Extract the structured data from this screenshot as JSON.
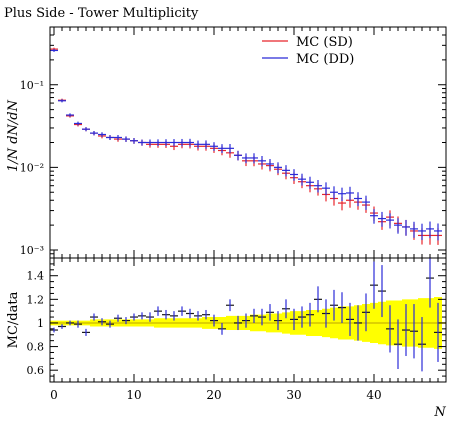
{
  "chart_data": {
    "type": "line",
    "title": "Plus Side - Tower Multiplicity",
    "xlabel": "N",
    "ylabel": "1/N dN/dN",
    "ratio_ylabel": "MC/data",
    "x": [
      0,
      1,
      2,
      3,
      4,
      5,
      6,
      7,
      8,
      9,
      10,
      11,
      12,
      13,
      14,
      15,
      16,
      17,
      18,
      19,
      20,
      21,
      22,
      23,
      24,
      25,
      26,
      27,
      28,
      29,
      30,
      31,
      32,
      33,
      34,
      35,
      36,
      37,
      38,
      39,
      40,
      41,
      42,
      43,
      44,
      45,
      46,
      47,
      48
    ],
    "xlim": [
      -0.5,
      49
    ],
    "ylim": [
      0.0008,
      0.5
    ],
    "yscale": "log",
    "legend_position": "top-right",
    "series": [
      {
        "name": "MC (SD)",
        "color": "#e8252b",
        "values": [
          0.27,
          0.065,
          0.042,
          0.033,
          0.029,
          0.026,
          0.024,
          0.023,
          0.022,
          0.022,
          0.021,
          0.02,
          0.019,
          0.019,
          0.019,
          0.018,
          0.019,
          0.019,
          0.018,
          0.018,
          0.017,
          0.016,
          0.015,
          0.014,
          0.012,
          0.012,
          0.011,
          0.0105,
          0.0095,
          0.0085,
          0.0075,
          0.0067,
          0.006,
          0.0055,
          0.0047,
          0.0042,
          0.0037,
          0.004,
          0.0038,
          0.0035,
          0.0028,
          0.0022,
          0.0025,
          0.0021,
          0.0019,
          0.0017,
          0.0015,
          0.0015,
          0.0015
        ]
      },
      {
        "name": "MC (DD)",
        "color": "#2b2bd8",
        "values": [
          0.26,
          0.064,
          0.043,
          0.034,
          0.029,
          0.026,
          0.025,
          0.023,
          0.023,
          0.022,
          0.021,
          0.02,
          0.02,
          0.02,
          0.02,
          0.02,
          0.02,
          0.02,
          0.019,
          0.019,
          0.018,
          0.017,
          0.017,
          0.014,
          0.013,
          0.013,
          0.012,
          0.011,
          0.01,
          0.0092,
          0.0082,
          0.0072,
          0.0066,
          0.006,
          0.0056,
          0.005,
          0.0048,
          0.0049,
          0.0042,
          0.0038,
          0.0026,
          0.0024,
          0.0023,
          0.002,
          0.0019,
          0.0018,
          0.0017,
          0.0018,
          0.0017
        ]
      }
    ],
    "ratio": {
      "ylim": [
        0.5,
        1.55
      ],
      "yticks": [
        0.6,
        0.8,
        1,
        1.2,
        1.4
      ],
      "values": [
        0.94,
        0.97,
        1.0,
        0.99,
        0.92,
        1.05,
        1.01,
        0.99,
        1.04,
        1.02,
        1.05,
        1.06,
        1.05,
        1.1,
        1.07,
        1.06,
        1.1,
        1.08,
        1.06,
        1.07,
        1.02,
        0.95,
        1.15,
        1.0,
        1.02,
        1.06,
        1.05,
        1.09,
        1.02,
        1.12,
        1.03,
        1.05,
        1.07,
        1.2,
        1.08,
        1.15,
        1.13,
        1.03,
        1.0,
        1.09,
        1.32,
        1.27,
        0.95,
        0.82,
        0.94,
        0.93,
        0.82,
        1.38,
        0.92
      ],
      "errors": [
        0.02,
        0.02,
        0.02,
        0.03,
        0.03,
        0.03,
        0.03,
        0.03,
        0.03,
        0.03,
        0.03,
        0.03,
        0.04,
        0.04,
        0.04,
        0.04,
        0.04,
        0.04,
        0.04,
        0.04,
        0.05,
        0.05,
        0.05,
        0.06,
        0.06,
        0.06,
        0.07,
        0.07,
        0.08,
        0.08,
        0.09,
        0.09,
        0.1,
        0.11,
        0.12,
        0.13,
        0.13,
        0.14,
        0.15,
        0.16,
        0.2,
        0.22,
        0.2,
        0.21,
        0.22,
        0.23,
        0.23,
        0.25,
        0.25
      ],
      "band_halfwidth": [
        0.02,
        0.02,
        0.02,
        0.02,
        0.02,
        0.03,
        0.03,
        0.03,
        0.03,
        0.03,
        0.03,
        0.03,
        0.03,
        0.04,
        0.04,
        0.04,
        0.04,
        0.04,
        0.04,
        0.05,
        0.05,
        0.05,
        0.06,
        0.06,
        0.06,
        0.07,
        0.07,
        0.08,
        0.08,
        0.09,
        0.1,
        0.1,
        0.11,
        0.11,
        0.12,
        0.13,
        0.14,
        0.14,
        0.15,
        0.16,
        0.17,
        0.18,
        0.19,
        0.19,
        0.2,
        0.2,
        0.21,
        0.21,
        0.22
      ],
      "band_color": "#ffff00"
    },
    "xticks": [
      0,
      10,
      20,
      30,
      40
    ],
    "yticks_labels": [
      "10⁻¹",
      "10⁻²",
      "10⁻³"
    ]
  }
}
